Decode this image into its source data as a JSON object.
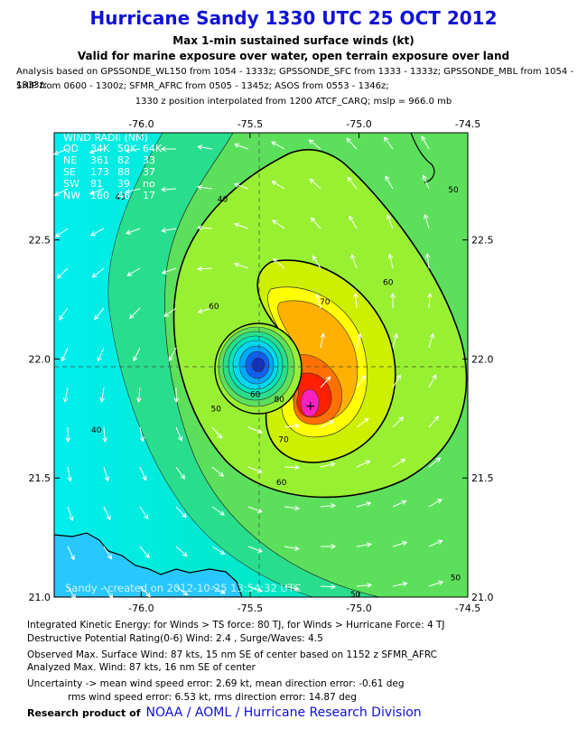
{
  "title": "Hurricane Sandy 1330 UTC 25 OCT 2012",
  "subtitle1": "Max 1-min sustained surface winds (kt)",
  "subtitle2": "Valid for marine exposure over water, open terrain exposure over land",
  "analysis_line1": "Analysis based on GPSSONDE_WL150 from 1054 - 1333z; GPSSONDE_SFC from 1333 - 1333z; GPSSONDE_MBL from 1054 - 1333z;",
  "analysis_line2": "SHIP from 0600 - 1300z; SFMR_AFRC from 0505 - 1345z; ASOS from 0553 - 1346z;",
  "position_note": "1330 z position interpolated from 1200 ATCF_CARQ; mslp = 966.0 mb",
  "wind_radii": {
    "header": "WIND RADII (NM)",
    "columns": [
      "QD",
      "34K",
      "50K",
      "64K"
    ],
    "rows": [
      [
        "NE",
        "361",
        "82",
        "33"
      ],
      [
        "SE",
        "173",
        "88",
        "37"
      ],
      [
        "SW",
        "81",
        "39",
        "no"
      ],
      [
        "NW",
        "160",
        "46",
        "17"
      ]
    ]
  },
  "watermark": "Sandy - created on 2012-10-25 13:54:32 UTC",
  "footer": {
    "ike": "Integrated Kinetic Energy: for Winds > TS force: 80 TJ, for Winds > Hurricane Force: 4 TJ",
    "dpr": "Destructive Potential Rating(0-6)   Wind: 2.4 , Surge/Waves: 4.5",
    "observed": "Observed Max. Surface Wind: 87 kts, 15 nm SE of center based on 1152 z SFMR_AFRC",
    "analyzed": "Analyzed Max. Wind: 87 kts, 16 nm  SE of center",
    "uncertainty1": "Uncertainty -> mean wind speed error: 2.69 kt, mean direction error:  -0.61 deg",
    "uncertainty2": "rms wind speed error: 6.53 kt, rms direction error: 14.87 deg",
    "research": "Research product of",
    "org": "NOAA  /  AOML  /  Hurricane Research Division"
  },
  "colors": {
    "title": "#1010d8",
    "cyan": "#00eeee",
    "aqua": "#00e4ba",
    "seagreen": "#28de8c",
    "green": "#5ce05c",
    "lime": "#98f032",
    "yellowgreen": "#ccf000",
    "yellow": "#ffff00",
    "orange": "#ffb000",
    "darkorange": "#ff7000",
    "red": "#ff2000",
    "magenta": "#ff20c0",
    "land": "#28c8ff"
  },
  "chart_data": {
    "type": "heatmap",
    "xlim": [
      -76.4,
      -74.5
    ],
    "ylim": [
      21.0,
      22.95
    ],
    "x_ticks": [
      "-76.0",
      "-75.5",
      "-75.0",
      "-74.5"
    ],
    "y_ticks": [
      "21.0",
      "21.5",
      "22.0",
      "22.5"
    ],
    "storm_center": [
      -75.5,
      22.0
    ],
    "max_wind_location": [
      -75.22,
      21.83
    ],
    "max_wind_kt": 87,
    "contour_labels": [
      {
        "text": "40",
        "lon": -76.12,
        "lat": 22.67
      },
      {
        "text": "40",
        "lon": -76.23,
        "lat": 21.69
      },
      {
        "text": "50",
        "lon": -75.68,
        "lat": 21.78
      },
      {
        "text": "50",
        "lon": -74.59,
        "lat": 22.7
      },
      {
        "text": "50",
        "lon": -74.58,
        "lat": 21.07
      },
      {
        "text": "50",
        "lon": -75.04,
        "lat": 21.0
      },
      {
        "text": "60",
        "lon": -75.69,
        "lat": 22.21
      },
      {
        "text": "60",
        "lon": -74.89,
        "lat": 22.31
      },
      {
        "text": "60",
        "lon": -75.38,
        "lat": 21.47
      },
      {
        "text": "40",
        "lon": -75.65,
        "lat": 22.66
      },
      {
        "text": "70",
        "lon": -75.18,
        "lat": 22.23
      },
      {
        "text": "70",
        "lon": -75.37,
        "lat": 21.65
      },
      {
        "text": "80",
        "lon": -75.39,
        "lat": 21.82
      },
      {
        "text": "60",
        "lon": -75.5,
        "lat": 21.84
      }
    ]
  }
}
